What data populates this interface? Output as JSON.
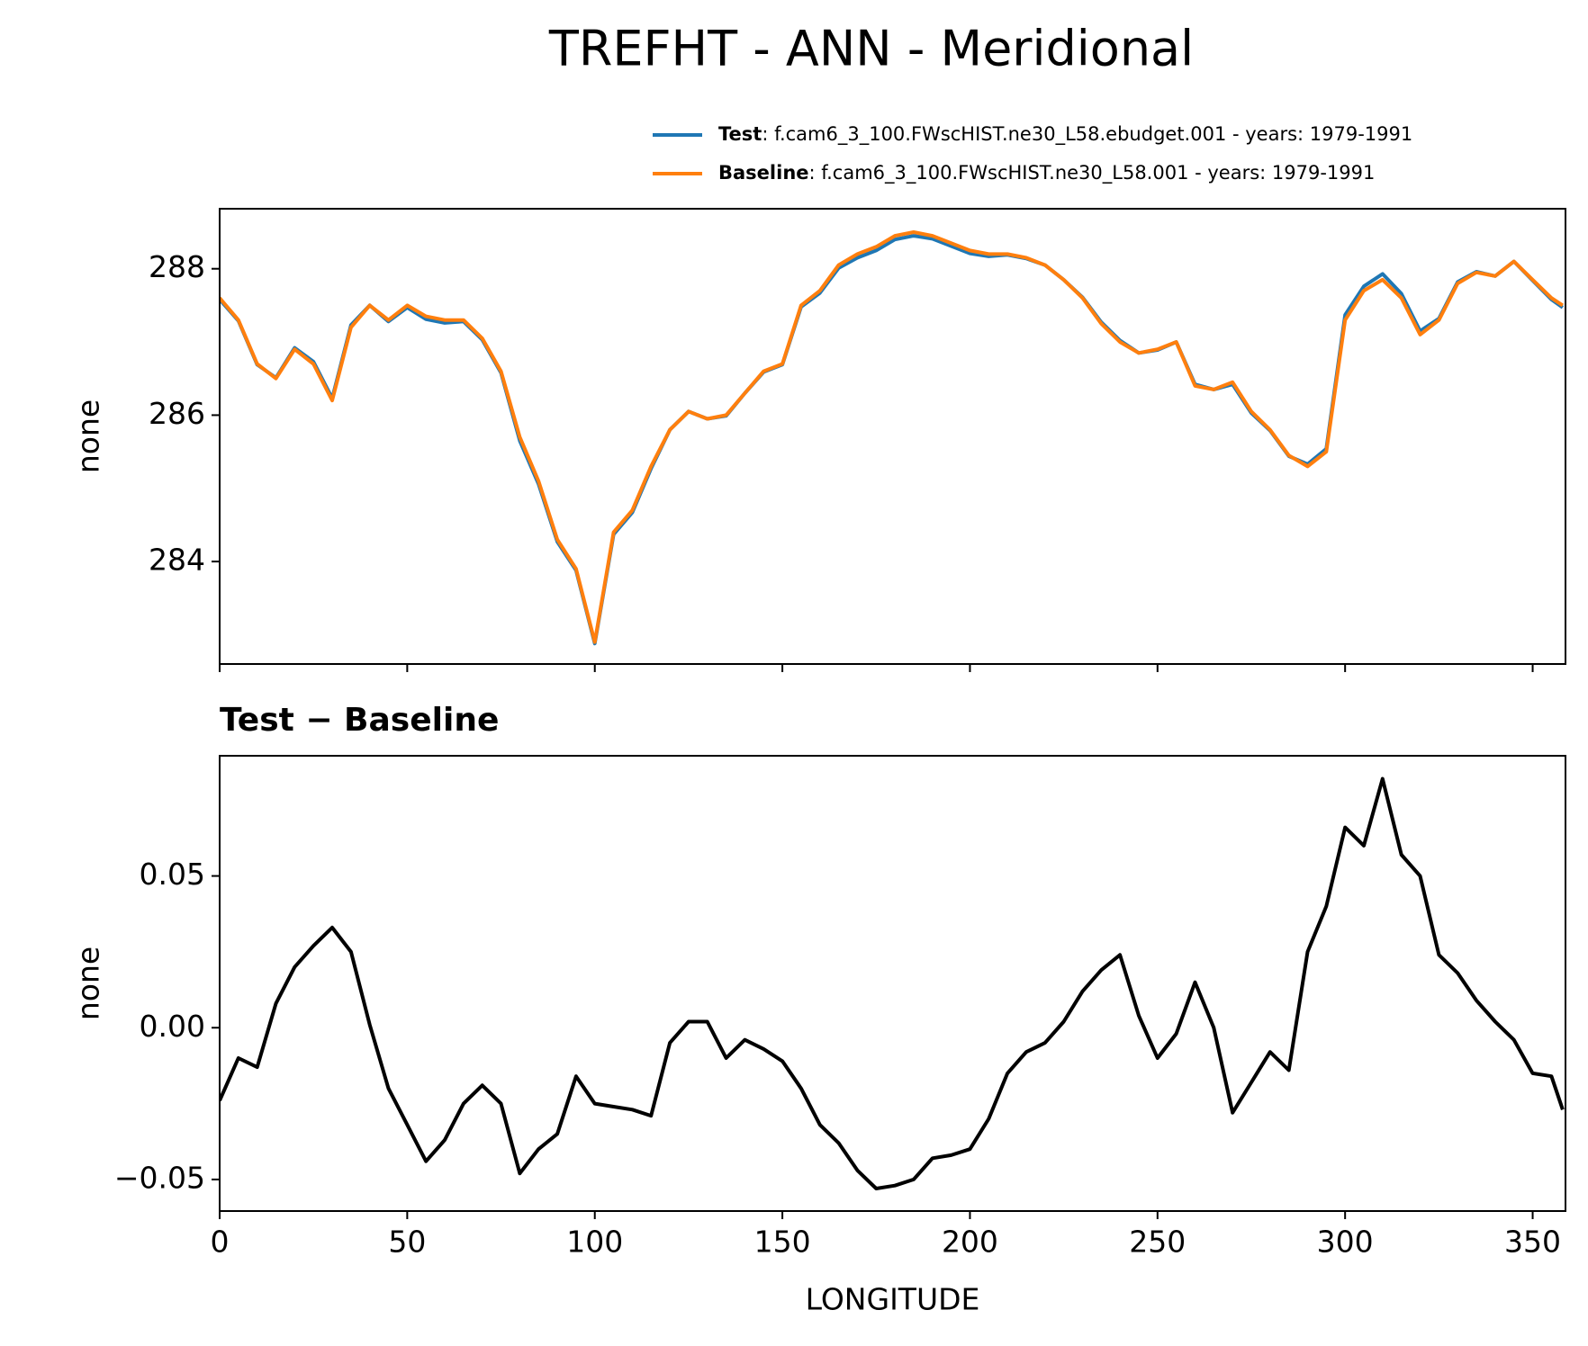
{
  "title": "TREFHT - ANN - Meridional",
  "chart_data": [
    {
      "type": "line",
      "ylabel": "none",
      "x": [
        0,
        5,
        10,
        15,
        20,
        25,
        30,
        35,
        40,
        45,
        50,
        55,
        60,
        65,
        70,
        75,
        80,
        85,
        90,
        95,
        100,
        105,
        110,
        115,
        120,
        125,
        130,
        135,
        140,
        145,
        150,
        155,
        160,
        165,
        170,
        175,
        180,
        185,
        190,
        195,
        200,
        205,
        210,
        215,
        220,
        225,
        230,
        235,
        240,
        245,
        250,
        255,
        260,
        265,
        270,
        275,
        280,
        285,
        290,
        295,
        300,
        305,
        310,
        315,
        320,
        325,
        330,
        335,
        340,
        345,
        350,
        355,
        358
      ],
      "series": [
        {
          "name": "Test",
          "description": ": f.cam6_3_100.FWscHIST.ne30_L58.ebudget.001 - years: 1979-1991",
          "color": "#1f77b4",
          "values": [
            287.58,
            287.29,
            286.69,
            286.51,
            286.92,
            286.73,
            286.23,
            287.23,
            287.5,
            287.28,
            287.47,
            287.31,
            287.26,
            287.28,
            287.03,
            286.58,
            285.65,
            285.06,
            284.27,
            283.88,
            282.88,
            284.37,
            284.67,
            285.27,
            285.8,
            286.05,
            285.95,
            285.99,
            286.3,
            286.59,
            286.69,
            287.48,
            287.67,
            288.01,
            288.15,
            288.25,
            288.4,
            288.45,
            288.41,
            288.31,
            288.21,
            288.17,
            288.19,
            288.14,
            288.05,
            287.85,
            287.61,
            287.27,
            287.02,
            286.85,
            286.89,
            287.0,
            286.42,
            286.35,
            286.42,
            286.03,
            285.79,
            285.44,
            285.33,
            285.54,
            287.37,
            287.76,
            287.93,
            287.66,
            287.15,
            287.32,
            287.82,
            287.96,
            287.9,
            288.1,
            287.84,
            287.58,
            287.47
          ]
        },
        {
          "name": "Baseline",
          "description": ": f.cam6_3_100.FWscHIST.ne30_L58.001 - years: 1979-1991",
          "color": "#ff7f0e",
          "values": [
            287.6,
            287.3,
            286.7,
            286.5,
            286.9,
            286.7,
            286.2,
            287.2,
            287.5,
            287.3,
            287.5,
            287.35,
            287.3,
            287.3,
            287.05,
            286.6,
            285.7,
            285.1,
            284.3,
            283.9,
            282.9,
            284.4,
            284.7,
            285.3,
            285.8,
            286.05,
            285.95,
            286.0,
            286.3,
            286.6,
            286.7,
            287.5,
            287.7,
            288.05,
            288.2,
            288.3,
            288.45,
            288.5,
            288.45,
            288.35,
            288.25,
            288.2,
            288.2,
            288.15,
            288.05,
            287.85,
            287.6,
            287.25,
            287.0,
            286.85,
            286.9,
            287.0,
            286.4,
            286.35,
            286.45,
            286.05,
            285.8,
            285.45,
            285.3,
            285.5,
            287.3,
            287.7,
            287.85,
            287.6,
            287.1,
            287.3,
            287.8,
            287.95,
            287.9,
            288.1,
            287.85,
            287.6,
            287.5
          ]
        }
      ],
      "xlim": [
        0,
        358.75
      ],
      "ylim": [
        282.6,
        288.82
      ],
      "xticks": [
        0,
        50,
        100,
        150,
        200,
        250,
        300,
        350
      ],
      "show_xticklabels": false,
      "yticks": [
        284,
        286,
        288
      ]
    },
    {
      "type": "line",
      "title": "Test − Baseline",
      "ylabel": "none",
      "xlabel": "LONGITUDE",
      "x": [
        0,
        5,
        10,
        15,
        20,
        25,
        30,
        35,
        40,
        45,
        50,
        55,
        60,
        65,
        70,
        75,
        80,
        85,
        90,
        95,
        100,
        105,
        110,
        115,
        120,
        125,
        130,
        135,
        140,
        145,
        150,
        155,
        160,
        165,
        170,
        175,
        180,
        185,
        190,
        195,
        200,
        205,
        210,
        215,
        220,
        225,
        230,
        235,
        240,
        245,
        250,
        255,
        260,
        265,
        270,
        275,
        280,
        285,
        290,
        295,
        300,
        305,
        310,
        315,
        320,
        325,
        330,
        335,
        340,
        345,
        350,
        355,
        358
      ],
      "color": "#000000",
      "values": [
        -0.024,
        -0.01,
        -0.013,
        0.008,
        0.02,
        0.027,
        0.033,
        0.025,
        0.001,
        -0.02,
        -0.032,
        -0.044,
        -0.037,
        -0.025,
        -0.019,
        -0.025,
        -0.048,
        -0.04,
        -0.035,
        -0.016,
        -0.025,
        -0.026,
        -0.027,
        -0.029,
        -0.005,
        0.002,
        0.002,
        -0.01,
        -0.004,
        -0.007,
        -0.011,
        -0.02,
        -0.032,
        -0.038,
        -0.047,
        -0.053,
        -0.052,
        -0.05,
        -0.043,
        -0.042,
        -0.04,
        -0.03,
        -0.015,
        -0.008,
        -0.005,
        0.002,
        0.012,
        0.019,
        0.024,
        0.004,
        -0.01,
        -0.002,
        0.015,
        0.0,
        -0.028,
        -0.018,
        -0.008,
        -0.014,
        0.025,
        0.04,
        0.066,
        0.06,
        0.082,
        0.057,
        0.05,
        0.024,
        0.018,
        0.009,
        0.002,
        -0.004,
        -0.015,
        -0.016,
        -0.027
      ],
      "xlim": [
        0,
        358.75
      ],
      "ylim": [
        -0.0604,
        0.0896
      ],
      "xticks": [
        0,
        50,
        100,
        150,
        200,
        250,
        300,
        350
      ],
      "show_xticklabels": true,
      "yticks": [
        {
          "value": -0.05,
          "label": "−0.05"
        },
        {
          "value": 0,
          "label": "0.00"
        },
        {
          "value": 0.05,
          "label": "0.05"
        }
      ]
    }
  ]
}
